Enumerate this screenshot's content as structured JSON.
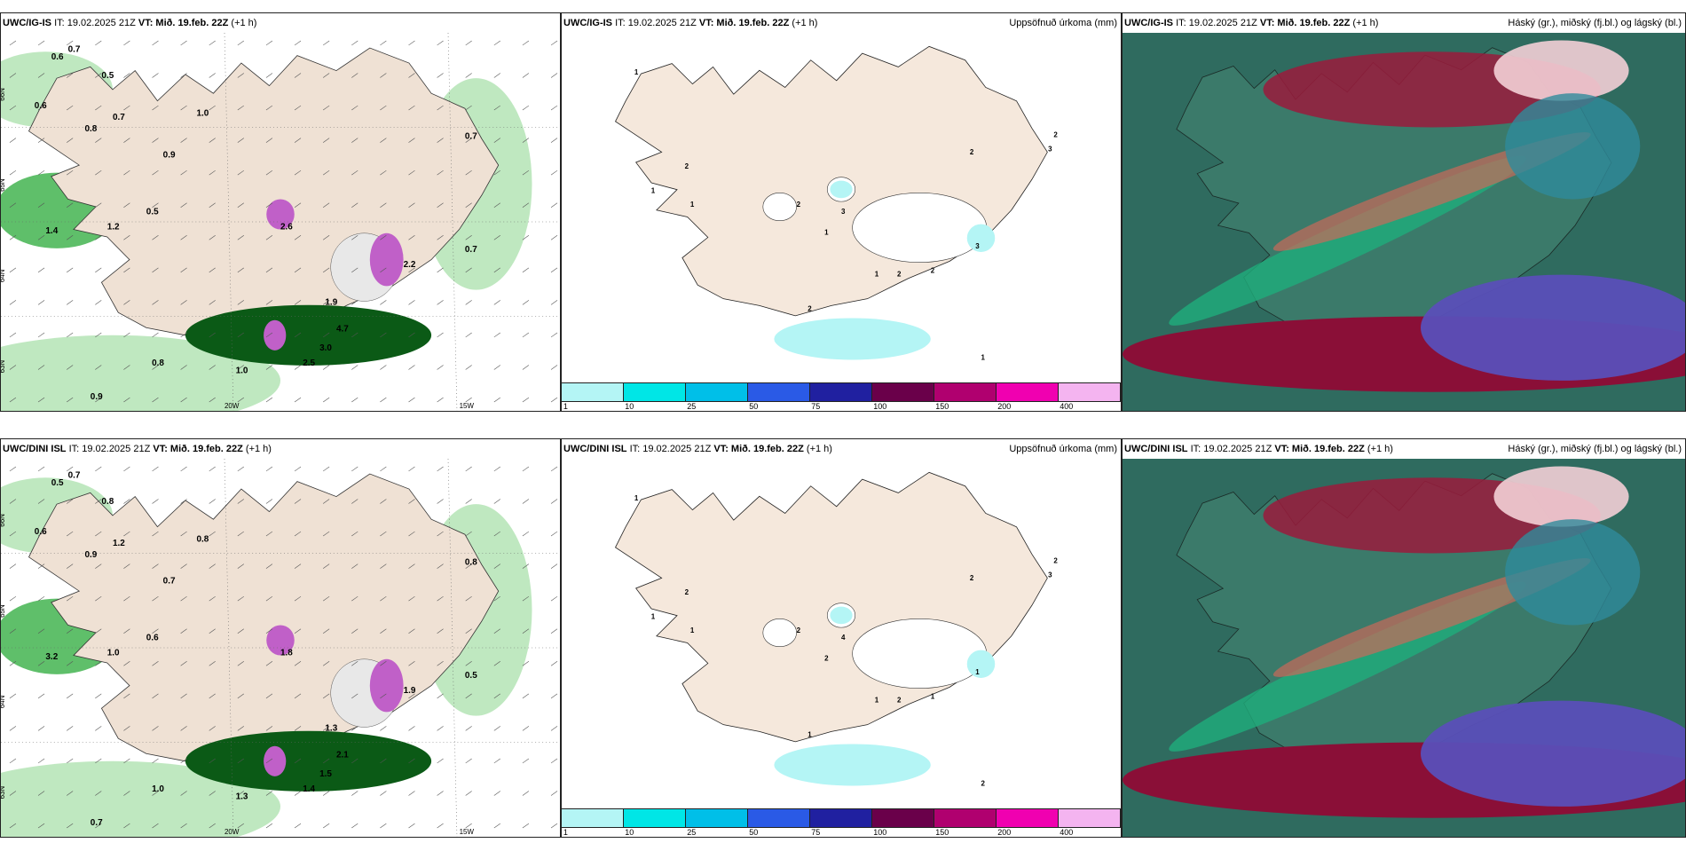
{
  "panels": [
    {
      "id": "p1",
      "model": "UWC/IG-IS",
      "it": "IT: 19.02.2025 21Z",
      "vt_label": "VT:",
      "vt": "Mið. 19.feb. 22Z",
      "lead": "(+1 h)",
      "title_right": "",
      "lon_labels": [
        "20W",
        "15W"
      ],
      "lat_labels": [
        "66N",
        "65N",
        "64N",
        "63N"
      ],
      "values": [
        "0.6",
        "0.7",
        "0.5",
        "0.8",
        "0.7",
        "0.6",
        "0.9",
        "1.0",
        "1.2",
        "0.5",
        "0.7",
        "2.6",
        "1.4",
        "1.9",
        "2.2",
        "4.7",
        "3.0",
        "2.5",
        "1.0",
        "0.8",
        "0.9",
        "0.7"
      ]
    },
    {
      "id": "p2",
      "model": "UWC/IG-IS",
      "it": "IT: 19.02.2025 21Z",
      "vt_label": "VT:",
      "vt": "Mið. 19.feb. 22Z",
      "lead": "(+1 h)",
      "title_right": "Uppsöfnuð úrkoma (mm)",
      "values": [
        "1",
        "2",
        "1",
        "1",
        "2",
        "3",
        "1",
        "2",
        "1",
        "2",
        "3",
        "3",
        "2",
        "2",
        "2",
        "1"
      ]
    },
    {
      "id": "p3",
      "model": "UWC/IG-IS",
      "it": "IT: 19.02.2025 21Z",
      "vt_label": "VT:",
      "vt": "Mið. 19.feb. 22Z",
      "lead": "(+1 h)",
      "title_right": "Háský (gr.), miðský (fj.bl.) og lágský (bl.)"
    },
    {
      "id": "p4",
      "model": "UWC/DINI ISL",
      "it": "IT: 19.02.2025 21Z",
      "vt_label": "VT:",
      "vt": "Mið. 19.feb. 22Z",
      "lead": "(+1 h)",
      "title_right": "",
      "lon_labels": [
        "20W",
        "15W"
      ],
      "lat_labels": [
        "66N",
        "65N",
        "64N",
        "63N"
      ],
      "values": [
        "0.5",
        "0.7",
        "0.8",
        "0.9",
        "1.2",
        "0.6",
        "0.7",
        "0.8",
        "1.0",
        "0.6",
        "0.8",
        "1.8",
        "3.2",
        "1.3",
        "1.9",
        "2.1",
        "1.5",
        "1.4",
        "1.3",
        "1.0",
        "0.7",
        "0.5"
      ]
    },
    {
      "id": "p5",
      "model": "UWC/DINI ISL",
      "it": "IT: 19.02.2025 21Z",
      "vt_label": "VT:",
      "vt": "Mið. 19.feb. 22Z",
      "lead": "(+1 h)",
      "title_right": "Uppsöfnuð úrkoma (mm)",
      "values": [
        "1",
        "2",
        "1",
        "1",
        "2",
        "4",
        "2",
        "2",
        "1",
        "2",
        "3",
        "1",
        "2",
        "1",
        "1",
        "2"
      ]
    },
    {
      "id": "p6",
      "model": "UWC/DINI ISL",
      "it": "IT: 19.02.2025 21Z",
      "vt_label": "VT:",
      "vt": "Mið. 19.feb. 22Z",
      "lead": "(+1 h)",
      "title_right": "Háský (gr.), miðský (fj.bl.) og lágský (bl.)"
    }
  ],
  "colorbar": {
    "ticks": [
      "1",
      "10",
      "25",
      "50",
      "75",
      "100",
      "150",
      "200",
      "400"
    ],
    "colors": [
      "#b4f5f5",
      "#00e6e6",
      "#00bfe8",
      "#2a5ae6",
      "#2020a0",
      "#6a004a",
      "#b0006f",
      "#f000b0",
      "#f4b4f0"
    ]
  },
  "colors": {
    "land": "#f5e8dc",
    "land_p1": "#efe1d4",
    "green_light": "#bfe8c0",
    "green_mid": "#5fbf6a",
    "green_dark": "#0b5a16",
    "magenta": "#c060c8",
    "water_cloud": "#2f6b5f"
  }
}
